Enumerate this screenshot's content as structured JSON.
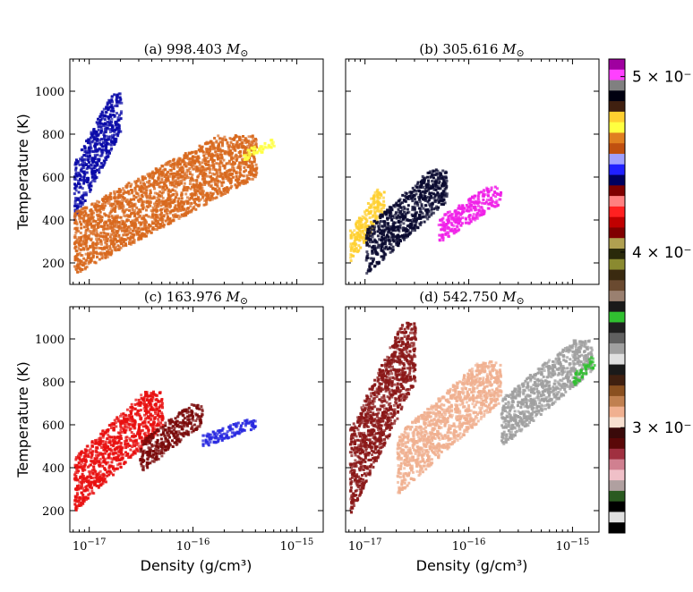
{
  "chart_data": [
    {
      "type": "heatmap",
      "title": "(a) 998.403",
      "title_symbol": "M",
      "title_subscript": "⊙",
      "xlabel": "",
      "ylabel": "Temperature (K)",
      "xscale": "log",
      "xlim": [
        6.5e-18,
        1.8e-15
      ],
      "ylim": [
        100,
        1150
      ],
      "xticks": [
        "10^-17",
        "10^-16",
        "10^-15"
      ],
      "yticks": [
        200,
        400,
        600,
        800,
        1000
      ],
      "regions": [
        {
          "color": "#0a0aa8",
          "x": [
            7e-18,
            2e-17
          ],
          "y": [
            400,
            1000
          ],
          "label": "blue cloud"
        },
        {
          "color": "#d8691e",
          "x": [
            7e-18,
            4e-16
          ],
          "y": [
            150,
            800
          ],
          "label": "orange band"
        },
        {
          "color": "#ffff40",
          "x": [
            3e-16,
            6e-16
          ],
          "y": [
            680,
            780
          ],
          "label": "yellow tip"
        }
      ]
    },
    {
      "type": "heatmap",
      "title": "(b) 305.616",
      "title_symbol": "M",
      "title_subscript": "⊙",
      "xlabel": "",
      "ylabel": "",
      "xscale": "log",
      "xlim": [
        6.5e-18,
        1.8e-15
      ],
      "ylim": [
        100,
        1150
      ],
      "xticks": [
        "10^-17",
        "10^-16",
        "10^-15"
      ],
      "yticks": [
        200,
        400,
        600,
        800,
        1000
      ],
      "regions": [
        {
          "color": "#ffd030",
          "x": [
            7e-18,
            1.5e-17
          ],
          "y": [
            200,
            550
          ],
          "label": "yellow edge"
        },
        {
          "color": "#0a0a30",
          "x": [
            1e-17,
            6e-17
          ],
          "y": [
            150,
            640
          ],
          "label": "dark band"
        },
        {
          "color": "#f020e8",
          "x": [
            5e-17,
            2e-16
          ],
          "y": [
            300,
            560
          ],
          "label": "magenta tip"
        }
      ]
    },
    {
      "type": "heatmap",
      "title": "(c) 163.976",
      "title_symbol": "M",
      "title_subscript": "⊙",
      "xlabel": "Density (g/cm³)",
      "ylabel": "Temperature (K)",
      "xscale": "log",
      "xlim": [
        6.5e-18,
        1.8e-15
      ],
      "ylim": [
        100,
        1150
      ],
      "xticks": [
        "10^-17",
        "10^-16",
        "10^-15"
      ],
      "yticks": [
        200,
        400,
        600,
        800,
        1000
      ],
      "regions": [
        {
          "color": "#e81010",
          "x": [
            7e-18,
            5e-17
          ],
          "y": [
            200,
            760
          ],
          "label": "red band"
        },
        {
          "color": "#7a0a0a",
          "x": [
            3e-17,
            1.2e-16
          ],
          "y": [
            380,
            700
          ],
          "label": "dark red"
        },
        {
          "color": "#2a2ae0",
          "x": [
            1.2e-16,
            4e-16
          ],
          "y": [
            500,
            630
          ],
          "label": "blue tip"
        }
      ]
    },
    {
      "type": "heatmap",
      "title": "(d) 542.750",
      "title_symbol": "M",
      "title_subscript": "⊙",
      "xlabel": "Density (g/cm³)",
      "ylabel": "",
      "xscale": "log",
      "xlim": [
        6.5e-18,
        1.8e-15
      ],
      "ylim": [
        100,
        1150
      ],
      "xticks": [
        "10^-17",
        "10^-16",
        "10^-15"
      ],
      "yticks": [
        200,
        400,
        600,
        800,
        1000
      ],
      "regions": [
        {
          "color": "#8a1818",
          "x": [
            7e-18,
            3e-17
          ],
          "y": [
            180,
            1080
          ],
          "label": "dark red band"
        },
        {
          "color": "#f0b090",
          "x": [
            2e-17,
            2e-16
          ],
          "y": [
            280,
            900
          ],
          "label": "peach band"
        },
        {
          "color": "#a0a0a0",
          "x": [
            2e-16,
            1.5e-15
          ],
          "y": [
            500,
            1000
          ],
          "label": "grey tip"
        },
        {
          "color": "#30c030",
          "x": [
            1e-15,
            1.6e-15
          ],
          "y": [
            780,
            920
          ],
          "label": "green tip"
        }
      ]
    }
  ],
  "colorbar": {
    "tick_labels": [
      "5 × 10⁻",
      "4 × 10⁻",
      "3 × 10⁻"
    ],
    "tick_values": [
      0.5,
      0.4,
      0.3
    ],
    "range": [
      0.24,
      0.51
    ],
    "colors": [
      "#000000",
      "#e0e0e0",
      "#000000",
      "#2a5a20",
      "#b0a0a0",
      "#f0c0c8",
      "#d08090",
      "#a03040",
      "#5a0808",
      "#3a0a0a",
      "#f8e0d0",
      "#f0b090",
      "#c08050",
      "#8a5020",
      "#402010",
      "#1a1a1a",
      "#e0e0e0",
      "#a0a0a0",
      "#606060",
      "#202020",
      "#30c030",
      "#1a1a1a",
      "#9a8070",
      "#6a4a30",
      "#3a2a10",
      "#8a8a30",
      "#2a2a0a",
      "#b0a050",
      "#800000",
      "#c00000",
      "#ff2020",
      "#ff8080",
      "#800000",
      "#000060",
      "#2020ff",
      "#a0a0ff",
      "#c05010",
      "#e08020",
      "#ffff40",
      "#ffd030",
      "#402010",
      "#000010",
      "#808080",
      "#ff40ff",
      "#a000a0"
    ]
  }
}
